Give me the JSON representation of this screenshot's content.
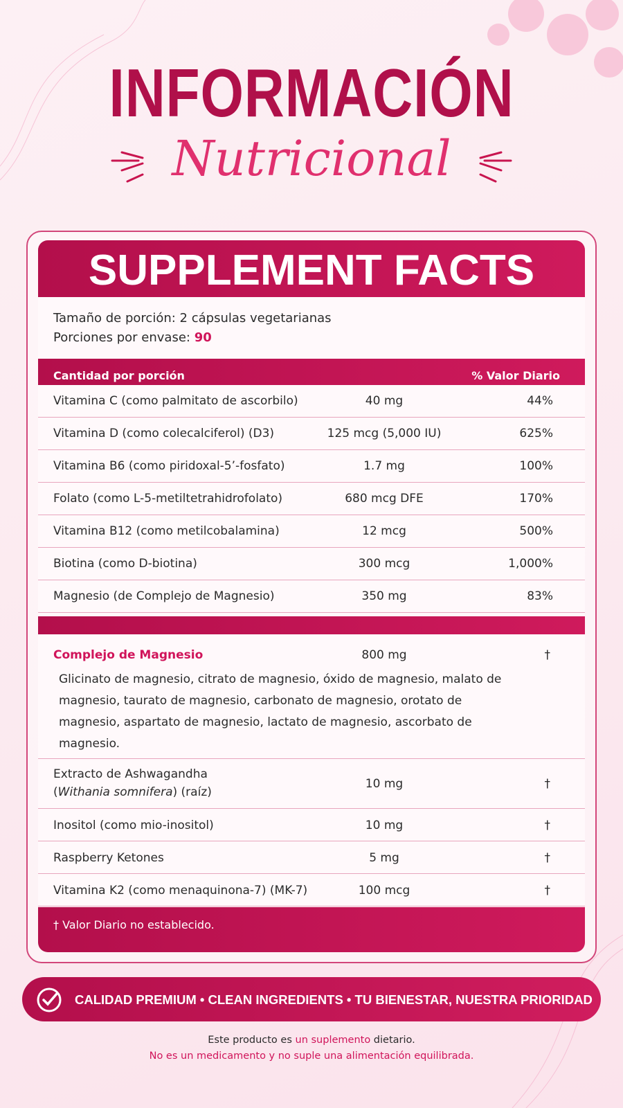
{
  "header": {
    "title": "INFORMACIÓN",
    "subtitle": "Nutricional"
  },
  "facts": {
    "title": "SUPPLEMENT FACTS",
    "serving_size_label": "Tamaño de porción:",
    "serving_size": "2 cápsulas vegetarianas",
    "servings_label": "Porciones por envase:",
    "servings": "90",
    "columns": [
      "Cantidad por porción",
      "% Valor Diario"
    ],
    "rows": [
      [
        "Vitamina C (como palmitato de ascorbilo)",
        "40 mg",
        "44%"
      ],
      [
        "Vitamina D (como colecalciferol) (D3)",
        "125 mcg (5,000 IU)",
        "625%"
      ],
      [
        "Vitamina B6 (como piridoxal-5’-fosfato)",
        "1.7 mg",
        "100%"
      ],
      [
        "Folato (como L-5-metiltetrahidrofolato)",
        "680 mcg DFE",
        "170%"
      ],
      [
        "Vitamina B12 (como metilcobalamina)",
        "12 mcg",
        "500%"
      ],
      [
        "Biotina (como D-biotina)",
        "300 mcg",
        "1,000%"
      ],
      [
        "Magnesio (de Complejo de Magnesio)",
        "350 mg",
        "83%"
      ]
    ],
    "complex": {
      "name": "Complejo de Magnesio",
      "amount": "800 mg",
      "dv": "†",
      "description": "Glicinato de magnesio, citrato de magnesio, óxido de magnesio, malato de magnesio, taurato de magnesio, carbonato de magnesio, orotato de magnesio, aspartato de magnesio, lactato de magnesio, ascorbato de magnesio."
    },
    "other_rows": [
      {
        "name": "Extracto de Ashwagandha",
        "name_segments": [
          {
            "text": "(",
            "italic": false
          },
          {
            "text": "Withania somnifera",
            "italic": true
          },
          {
            "text": ") (raíz)",
            "italic": false
          }
        ],
        "amount": "10 mg",
        "dv": "†"
      },
      {
        "name": "Inositol (como mio-inositol)",
        "amount": "10 mg",
        "dv": "†"
      },
      {
        "name": "Raspberry Ketones",
        "amount": "5 mg",
        "dv": "†"
      },
      {
        "name": "Vitamina K2 (como menaquinona-7) (MK-7)",
        "amount": "100 mcg",
        "dv": "†"
      }
    ],
    "footnote": "† Valor Diario no establecido."
  },
  "banner": "CALIDAD PREMIUM • CLEAN INGREDIENTS • TU BIENESTAR, NUESTRA PRIORIDAD",
  "disclaimer": {
    "line1": [
      "Este producto es ",
      "un suplemento",
      " dietario."
    ],
    "line2": "No es un medicamento y no suple una alimentación equilibrada."
  }
}
